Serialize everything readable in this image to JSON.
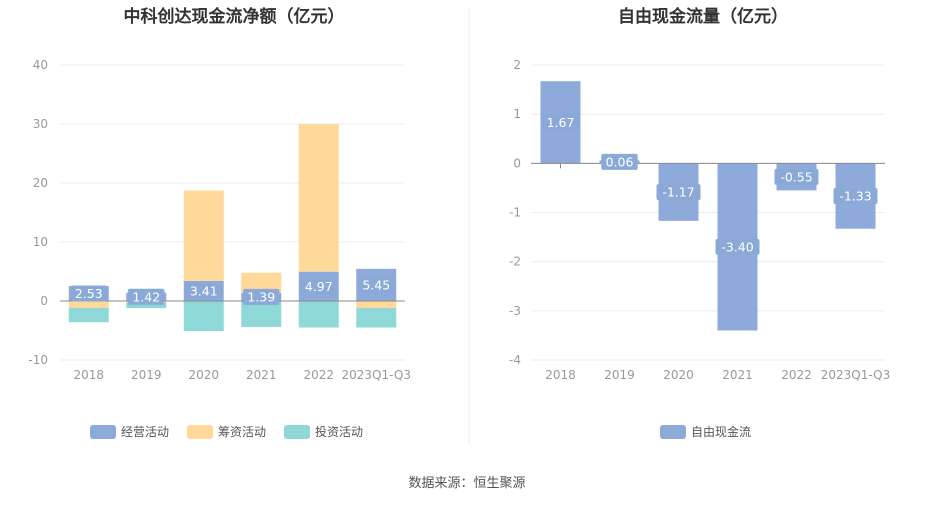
{
  "colors": {
    "operating": "#8eaadb",
    "financing": "#fed99a",
    "investing": "#8fd8d8",
    "fcf": "#8eaadb"
  },
  "chart_data": [
    {
      "type": "bar",
      "stacked": true,
      "title": "中科创达现金流净额（亿元）",
      "categories": [
        "2018",
        "2019",
        "2020",
        "2021",
        "2022",
        "2023Q1-Q3"
      ],
      "ylim": [
        -10,
        40
      ],
      "yticks": [
        "40",
        "30",
        "20",
        "10",
        "0",
        "-10"
      ],
      "yticks_values": [
        40,
        30,
        20,
        10,
        0,
        -10
      ],
      "series": [
        {
          "name": "经营活动",
          "key": "operating",
          "values": [
            2.53,
            1.42,
            3.41,
            1.39,
            4.97,
            5.45
          ],
          "labels": [
            "2.53",
            "1.42",
            "3.41",
            "1.39",
            "4.97",
            "5.45"
          ]
        },
        {
          "name": "筹资活动",
          "key": "financing",
          "values": [
            -1.2,
            -0.3,
            15.3,
            3.4,
            25.0,
            -1.2
          ]
        },
        {
          "name": "投资活动",
          "key": "investing",
          "values": [
            -2.4,
            -0.9,
            -5.1,
            -4.4,
            -4.5,
            -3.3
          ]
        }
      ],
      "legend": [
        "经营活动",
        "筹资活动",
        "投资活动"
      ]
    },
    {
      "type": "bar",
      "title": "自由现金流量（亿元）",
      "categories": [
        "2018",
        "2019",
        "2020",
        "2021",
        "2022",
        "2023Q1-Q3"
      ],
      "ylim": [
        -4,
        2
      ],
      "yticks": [
        "2",
        "1",
        "0",
        "-1",
        "-2",
        "-3",
        "-4"
      ],
      "yticks_values": [
        2,
        1,
        0,
        -1,
        -2,
        -3,
        -4
      ],
      "series": [
        {
          "name": "自由现金流",
          "key": "fcf",
          "values": [
            1.67,
            0.06,
            -1.17,
            -3.4,
            -0.55,
            -1.33
          ],
          "labels": [
            "1.67",
            "0.06",
            "-1.17",
            "-3.40",
            "-0.55",
            "-1.33"
          ]
        }
      ],
      "legend": [
        "自由现金流"
      ]
    }
  ],
  "footer": {
    "source": "数据来源：恒生聚源"
  }
}
